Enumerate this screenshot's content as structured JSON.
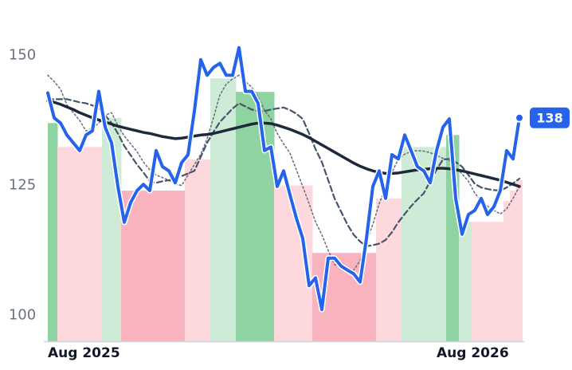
{
  "chart_data": {
    "type": "line",
    "categories": [
      "Aug 2025",
      null,
      null,
      null,
      null,
      null,
      null,
      null,
      null,
      null,
      null,
      null,
      null,
      null,
      null,
      null,
      null,
      null,
      null,
      null,
      null,
      null,
      null,
      null,
      null,
      null,
      null,
      null,
      null,
      null,
      null,
      null,
      null,
      null,
      null,
      null,
      null,
      null,
      null,
      null,
      null,
      null,
      null,
      null,
      null,
      null,
      null,
      null,
      null,
      null,
      null,
      null,
      null,
      null,
      null,
      null,
      null,
      null,
      null,
      null,
      null,
      "Aug 2026",
      null,
      null,
      null,
      null,
      null,
      null,
      null,
      null,
      null,
      null,
      null,
      null,
      null
    ],
    "ylim": [
      95,
      157
    ],
    "yticks": [
      100,
      125,
      150
    ],
    "grid": false,
    "series": [
      {
        "type": "bar",
        "colors": [
          "#8fd3a3",
          "#8fd3a3",
          "#fdd9de",
          "#fdd9de",
          "#fdd9de",
          "#fdd9de",
          "#fdd9de",
          "#fdd9de",
          "#fdd9de",
          "#cdebd6",
          "#cdebd6",
          "#cdebd6",
          "#f9b3bf",
          "#f9b3bf",
          "#f9b3bf",
          "#f9b3bf",
          "#f9b3bf",
          "#f9b3bf",
          "#f9b3bf",
          "#f9b3bf",
          "#f9b3bf",
          "#f9b3bf",
          "#fdd9de",
          "#fdd9de",
          "#fdd9de",
          "#fdd9de",
          "#cdebd6",
          "#cdebd6",
          "#cdebd6",
          "#cdebd6",
          "#8fd3a3",
          "#8fd3a3",
          "#8fd3a3",
          "#8fd3a3",
          "#8fd3a3",
          "#8fd3a3",
          "#fdd9de",
          "#fdd9de",
          "#fdd9de",
          "#fdd9de",
          "#fdd9de",
          "#fdd9de",
          "#f9b3bf",
          "#f9b3bf",
          "#f9b3bf",
          "#f9b3bf",
          "#f9b3bf",
          "#f9b3bf",
          "#f9b3bf",
          "#f9b3bf",
          "#f9b3bf",
          "#f9b3bf",
          "#fdd9de",
          "#fdd9de",
          "#fdd9de",
          "#fdd9de",
          "#cdebd6",
          "#cdebd6",
          "#cdebd6",
          "#cdebd6",
          "#cdebd6",
          "#cdebd6",
          "#cdebd6",
          "#8fd3a3",
          "#8fd3a3",
          "#cdebd6",
          "#cdebd6",
          "#fdd9de",
          "#fdd9de",
          "#fdd9de",
          "#fdd9de",
          "#fdd9de",
          "#fdd9de",
          "#fdd9de",
          "#fdd9de"
        ],
        "values": [
          137,
          137,
          132.4,
          132.4,
          132.4,
          132.4,
          132.4,
          132.4,
          132.4,
          138,
          138,
          138,
          124,
          124,
          124,
          124,
          124,
          124,
          124,
          124,
          124,
          124,
          130,
          130,
          130,
          130,
          145.6,
          145.6,
          145.6,
          145.6,
          143,
          143,
          143,
          143,
          143,
          143,
          125,
          125,
          125,
          125,
          125,
          125,
          112,
          112,
          112,
          112,
          112,
          112,
          112,
          112,
          112,
          112,
          122.5,
          122.5,
          122.5,
          122.5,
          132.4,
          132.4,
          132.4,
          132.4,
          132.4,
          132.4,
          132.4,
          134.7,
          134.7,
          118,
          118,
          118,
          118,
          118,
          118,
          118,
          122,
          124,
          126
        ]
      },
      {
        "type": "line",
        "color": "#6b7280",
        "dash": "dotted",
        "values": [
          146.2,
          145,
          143.5,
          140.5,
          139,
          137.5,
          135.5,
          136,
          137,
          138.5,
          139,
          136.5,
          134.5,
          133,
          131.5,
          129.5,
          128,
          127,
          126.5,
          126,
          125.2,
          125,
          127,
          129,
          131,
          134,
          138,
          142.4,
          144.5,
          145.5,
          146.2,
          145,
          143.9,
          142,
          139.5,
          137.8,
          135,
          133,
          131.2,
          128,
          124.8,
          121.5,
          118,
          115.5,
          112.5,
          109.8,
          109.2,
          108.9,
          108.7,
          110.5,
          114.2,
          117.5,
          121.5,
          124.5,
          127.5,
          130.1,
          131,
          131.5,
          131.7,
          131.6,
          131.3,
          130.8,
          130.2,
          129.8,
          128.6,
          127.2,
          125.8,
          123.5,
          122,
          121,
          120.2,
          119.5,
          120.5,
          122.5,
          124.8
        ]
      },
      {
        "type": "line",
        "color": "#475569",
        "dash": "dashed",
        "values": [
          141.5,
          141.6,
          141.6,
          141.6,
          141.3,
          141,
          140.8,
          140.4,
          139.8,
          138.5,
          137,
          135,
          132.6,
          130.8,
          129,
          127.5,
          125.8,
          125.5,
          125.8,
          126,
          126.3,
          126.8,
          127.3,
          127.8,
          130.5,
          133.2,
          135.3,
          137.2,
          138.5,
          139.8,
          140.8,
          140.2,
          139.6,
          139.3,
          139.3,
          139.6,
          139.8,
          140,
          139.5,
          138.8,
          137.8,
          135,
          132,
          129.5,
          126,
          122.5,
          120,
          117.5,
          115.5,
          114.2,
          113.3,
          113.5,
          113.8,
          114.5,
          116,
          117.9,
          119.5,
          121,
          122.3,
          123.5,
          125.8,
          128,
          130,
          130.1,
          129.5,
          128.6,
          127,
          125.3,
          124.6,
          124.3,
          124.1,
          124,
          124.6,
          125.4,
          126.3
        ]
      },
      {
        "type": "line",
        "color": "#1e293b",
        "dash": "solid",
        "values": [
          141.3,
          141,
          140.6,
          140.1,
          139.6,
          139,
          138.5,
          138,
          137.6,
          137.2,
          136.8,
          136.4,
          136.1,
          135.8,
          135.5,
          135.2,
          135,
          134.7,
          134.4,
          134.2,
          134,
          134.1,
          134.3,
          134.5,
          134.7,
          134.8,
          135,
          135.3,
          135.6,
          135.9,
          136.2,
          136.5,
          136.8,
          137,
          137,
          136.9,
          136.6,
          136.2,
          135.8,
          135.3,
          134.8,
          134.2,
          133.5,
          132.8,
          132.1,
          131.4,
          130.7,
          130,
          129.3,
          128.7,
          128.2,
          127.8,
          127.5,
          127.3,
          127.3,
          127.4,
          127.6,
          127.8,
          128,
          128.1,
          128.2,
          128.3,
          128.3,
          128.2,
          128,
          127.8,
          127.5,
          127.2,
          126.9,
          126.6,
          126.3,
          126,
          125.6,
          125.2,
          124.8
        ]
      },
      {
        "type": "line",
        "color": "#2563eb",
        "dash": "solid",
        "last_value_label": true,
        "values": [
          142.8,
          138,
          137,
          134.7,
          133.2,
          131.7,
          134.7,
          135.5,
          143.1,
          136.2,
          133.2,
          124.8,
          117.9,
          121.7,
          124,
          125.2,
          124,
          131.7,
          128.6,
          127.8,
          125.5,
          129.4,
          130.9,
          139.3,
          149.2,
          146.2,
          147.7,
          148.5,
          146.2,
          146.2,
          151.5,
          143.1,
          143.1,
          140.8,
          131.7,
          132.4,
          124.8,
          127.8,
          123.2,
          118.7,
          114.8,
          105.7,
          107.2,
          101.1,
          111,
          111,
          109.5,
          108.7,
          108,
          106.4,
          114.8,
          124.8,
          127.8,
          122.5,
          130.9,
          130.1,
          134.7,
          131.7,
          128.6,
          127.8,
          125.5,
          131.7,
          136.2,
          137.8,
          122.5,
          115.6,
          119.4,
          120.2,
          122.5,
          119.4,
          120.9,
          124,
          131.7,
          130.1,
          138
        ]
      }
    ]
  }
}
